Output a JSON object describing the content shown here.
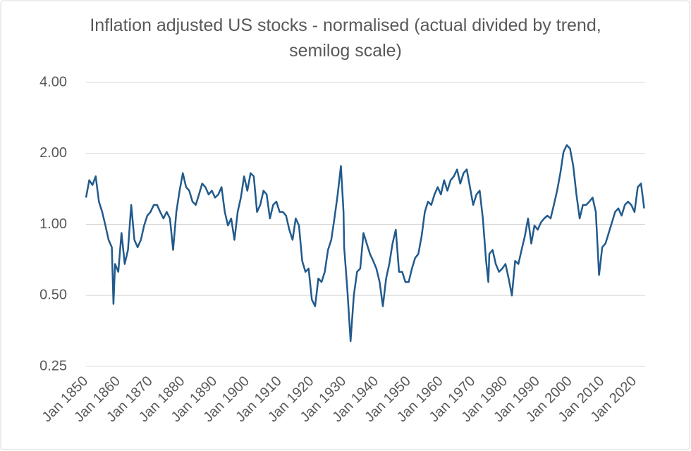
{
  "chart_data": {
    "type": "line",
    "title": "Inflation adjusted US stocks - normalised (actual divided by trend, semilog scale)",
    "log_scale": true,
    "grid": true,
    "ylim": [
      0.25,
      4
    ],
    "yticks": [
      {
        "value": 4,
        "label": "4.00"
      },
      {
        "value": 2,
        "label": "2.00"
      },
      {
        "value": 1,
        "label": "1.00"
      },
      {
        "value": 0.5,
        "label": "0.50"
      },
      {
        "value": 0.25,
        "label": "0.25"
      }
    ],
    "xlim": [
      1850,
      2023.3
    ],
    "xticks": [
      {
        "value": 1850,
        "label": "Jan 1850"
      },
      {
        "value": 1860,
        "label": "Jan 1860"
      },
      {
        "value": 1870,
        "label": "Jan 1870"
      },
      {
        "value": 1880,
        "label": "Jan 1880"
      },
      {
        "value": 1890,
        "label": "Jan 1890"
      },
      {
        "value": 1900,
        "label": "Jan 1900"
      },
      {
        "value": 1910,
        "label": "Jan 1910"
      },
      {
        "value": 1920,
        "label": "Jan 1920"
      },
      {
        "value": 1930,
        "label": "Jan 1930"
      },
      {
        "value": 1940,
        "label": "Jan 1940"
      },
      {
        "value": 1950,
        "label": "Jan 1950"
      },
      {
        "value": 1960,
        "label": "Jan 1960"
      },
      {
        "value": 1970,
        "label": "Jan 1970"
      },
      {
        "value": 1980,
        "label": "Jan 1980"
      },
      {
        "value": 1990,
        "label": "Jan 1990"
      },
      {
        "value": 2000,
        "label": "Jan 2000"
      },
      {
        "value": 2010,
        "label": "Jan 2010"
      },
      {
        "value": 2020,
        "label": "Jan 2020"
      }
    ],
    "color": "#215a8c",
    "x": [
      1850,
      1851,
      1852,
      1853,
      1854,
      1855,
      1856,
      1857,
      1858,
      1858.5,
      1859,
      1860,
      1861,
      1862,
      1863,
      1864,
      1865,
      1866,
      1867,
      1868,
      1869,
      1870,
      1871,
      1872,
      1873,
      1874,
      1875,
      1876,
      1877,
      1878,
      1879,
      1880,
      1881,
      1882,
      1883,
      1884,
      1885,
      1886,
      1887,
      1888,
      1889,
      1890,
      1891,
      1892,
      1893,
      1894,
      1895,
      1896,
      1897,
      1898,
      1899,
      1900,
      1901,
      1902,
      1903,
      1904,
      1905,
      1906,
      1907,
      1908,
      1909,
      1910,
      1911,
      1912,
      1913,
      1914,
      1915,
      1916,
      1917,
      1918,
      1919,
      1920,
      1921,
      1922,
      1923,
      1924,
      1925,
      1926,
      1927,
      1928,
      1929,
      1929.8,
      1930,
      1931,
      1932,
      1933,
      1934,
      1935,
      1936,
      1937,
      1938,
      1939,
      1940,
      1941,
      1942,
      1943,
      1944,
      1945,
      1946,
      1947,
      1948,
      1949,
      1950,
      1951,
      1952,
      1953,
      1954,
      1955,
      1956,
      1957,
      1958,
      1959,
      1960,
      1961,
      1962,
      1963,
      1964,
      1965,
      1966,
      1967,
      1968,
      1969,
      1970,
      1971,
      1972,
      1973,
      1974,
      1974.7,
      1975,
      1976,
      1977,
      1978,
      1979,
      1980,
      1981,
      1982,
      1983,
      1984,
      1985,
      1986,
      1987,
      1988,
      1989,
      1990,
      1991,
      1992,
      1993,
      1994,
      1995,
      1996,
      1997,
      1998,
      1999,
      2000,
      2001,
      2002,
      2003,
      2004,
      2005,
      2006,
      2007,
      2008,
      2009,
      2010,
      2011,
      2012,
      2013,
      2014,
      2015,
      2016,
      2017,
      2018,
      2019,
      2020,
      2021,
      2022,
      2023
    ],
    "values": [
      1.3,
      1.54,
      1.47,
      1.6,
      1.25,
      1.13,
      0.99,
      0.86,
      0.8,
      0.46,
      0.68,
      0.63,
      0.92,
      0.68,
      0.78,
      1.21,
      0.86,
      0.8,
      0.86,
      0.99,
      1.09,
      1.13,
      1.21,
      1.21,
      1.13,
      1.06,
      1.13,
      1.06,
      0.78,
      1.13,
      1.39,
      1.65,
      1.44,
      1.39,
      1.25,
      1.21,
      1.34,
      1.49,
      1.44,
      1.34,
      1.39,
      1.3,
      1.34,
      1.44,
      1.13,
      0.99,
      1.06,
      0.86,
      1.13,
      1.3,
      1.6,
      1.39,
      1.65,
      1.6,
      1.13,
      1.21,
      1.39,
      1.34,
      1.06,
      1.21,
      1.25,
      1.13,
      1.13,
      1.09,
      0.95,
      0.86,
      1.06,
      0.99,
      0.7,
      0.63,
      0.65,
      0.48,
      0.45,
      0.59,
      0.57,
      0.63,
      0.78,
      0.86,
      1.06,
      1.34,
      1.77,
      1.13,
      0.8,
      0.53,
      0.32,
      0.5,
      0.63,
      0.65,
      0.92,
      0.83,
      0.75,
      0.7,
      0.65,
      0.57,
      0.45,
      0.59,
      0.68,
      0.83,
      0.95,
      0.63,
      0.63,
      0.57,
      0.57,
      0.65,
      0.72,
      0.75,
      0.89,
      1.13,
      1.25,
      1.21,
      1.34,
      1.44,
      1.34,
      1.54,
      1.39,
      1.54,
      1.6,
      1.71,
      1.49,
      1.65,
      1.71,
      1.44,
      1.21,
      1.34,
      1.39,
      1.06,
      0.7,
      0.57,
      0.75,
      0.78,
      0.68,
      0.63,
      0.65,
      0.68,
      0.59,
      0.5,
      0.7,
      0.68,
      0.78,
      0.89,
      1.06,
      0.83,
      0.99,
      0.95,
      1.02,
      1.06,
      1.09,
      1.06,
      1.21,
      1.39,
      1.65,
      2.03,
      2.17,
      2.1,
      1.77,
      1.34,
      1.06,
      1.21,
      1.21,
      1.25,
      1.3,
      1.13,
      0.61,
      0.8,
      0.83,
      0.92,
      1.02,
      1.13,
      1.17,
      1.09,
      1.21,
      1.25,
      1.21,
      1.13,
      1.44,
      1.49,
      1.17
    ]
  }
}
